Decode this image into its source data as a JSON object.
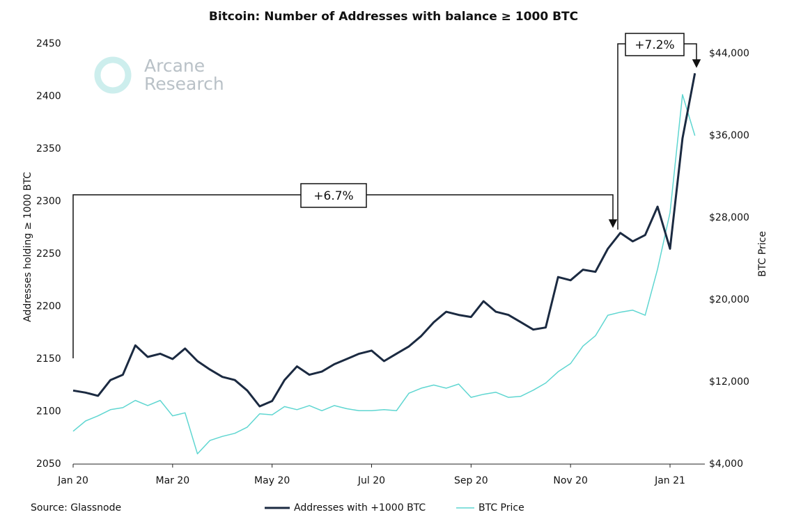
{
  "chart_data": {
    "type": "line",
    "title": "Bitcoin: Number of Addresses with balance ≥ 1000 BTC",
    "ylabel": "Addresses holding ≥ 1000 BTC",
    "y2label": "BTC Price",
    "source": "Source: Glassnode",
    "watermark": [
      "Arcane",
      "Research"
    ],
    "annotations": [
      "+6.7%",
      "+7.2%"
    ],
    "categories": [
      "Jan 20",
      null,
      null,
      null,
      null,
      null,
      null,
      null,
      "Mar 20",
      null,
      null,
      null,
      null,
      null,
      null,
      null,
      "May 20",
      null,
      null,
      null,
      null,
      null,
      null,
      null,
      "Jul 20",
      null,
      null,
      null,
      null,
      null,
      null,
      null,
      "Sep 20",
      null,
      null,
      null,
      null,
      null,
      null,
      null,
      "Nov 20",
      null,
      null,
      null,
      null,
      null,
      null,
      null,
      "Jan 21",
      null,
      null
    ],
    "ylim": [
      2050,
      2450
    ],
    "yticks": [
      2050,
      2100,
      2150,
      2200,
      2250,
      2300,
      2350,
      2400,
      2450
    ],
    "y2lim": [
      4000,
      44000
    ],
    "y2ticks": [
      {
        "value": 4000,
        "label": "$4,000"
      },
      {
        "value": 12000,
        "label": "$12,000"
      },
      {
        "value": 20000,
        "label": "$20,000"
      },
      {
        "value": 28000,
        "label": "$28,000"
      },
      {
        "value": 36000,
        "label": "$36,000"
      },
      {
        "value": 44000,
        "label": "$44,000"
      }
    ],
    "grid": false,
    "legend": "bottom",
    "series": [
      {
        "name": "Addresses with +1000 BTC",
        "color": "#1b2a41",
        "values": [
          2120,
          2118,
          2115,
          2130,
          2135,
          2163,
          2152,
          2155,
          2150,
          2160,
          2148,
          2140,
          2133,
          2130,
          2120,
          2105,
          2110,
          2130,
          2143,
          2135,
          2138,
          2145,
          2150,
          2155,
          2158,
          2148,
          2155,
          2162,
          2172,
          2185,
          2195,
          2192,
          2190,
          2205,
          2195,
          2192,
          2185,
          2178,
          2180,
          2228,
          2225,
          2235,
          2233,
          2255,
          2270,
          2262,
          2268,
          2295,
          2255,
          2360,
          2422
        ]
      },
      {
        "name": "BTC Price",
        "color": "#5fd6d1",
        "axis": "y2",
        "values": [
          7200,
          8200,
          8700,
          9300,
          9500,
          10200,
          9700,
          10200,
          8700,
          9000,
          5000,
          6300,
          6700,
          7000,
          7600,
          8900,
          8800,
          9600,
          9300,
          9700,
          9200,
          9700,
          9400,
          9200,
          9200,
          9300,
          9200,
          10900,
          11400,
          11700,
          11400,
          11800,
          10500,
          10800,
          11000,
          10500,
          10600,
          11200,
          11900,
          13000,
          13800,
          15500,
          16500,
          18500,
          18800,
          19000,
          18500,
          23000,
          28500,
          40000,
          36000
        ]
      }
    ]
  }
}
